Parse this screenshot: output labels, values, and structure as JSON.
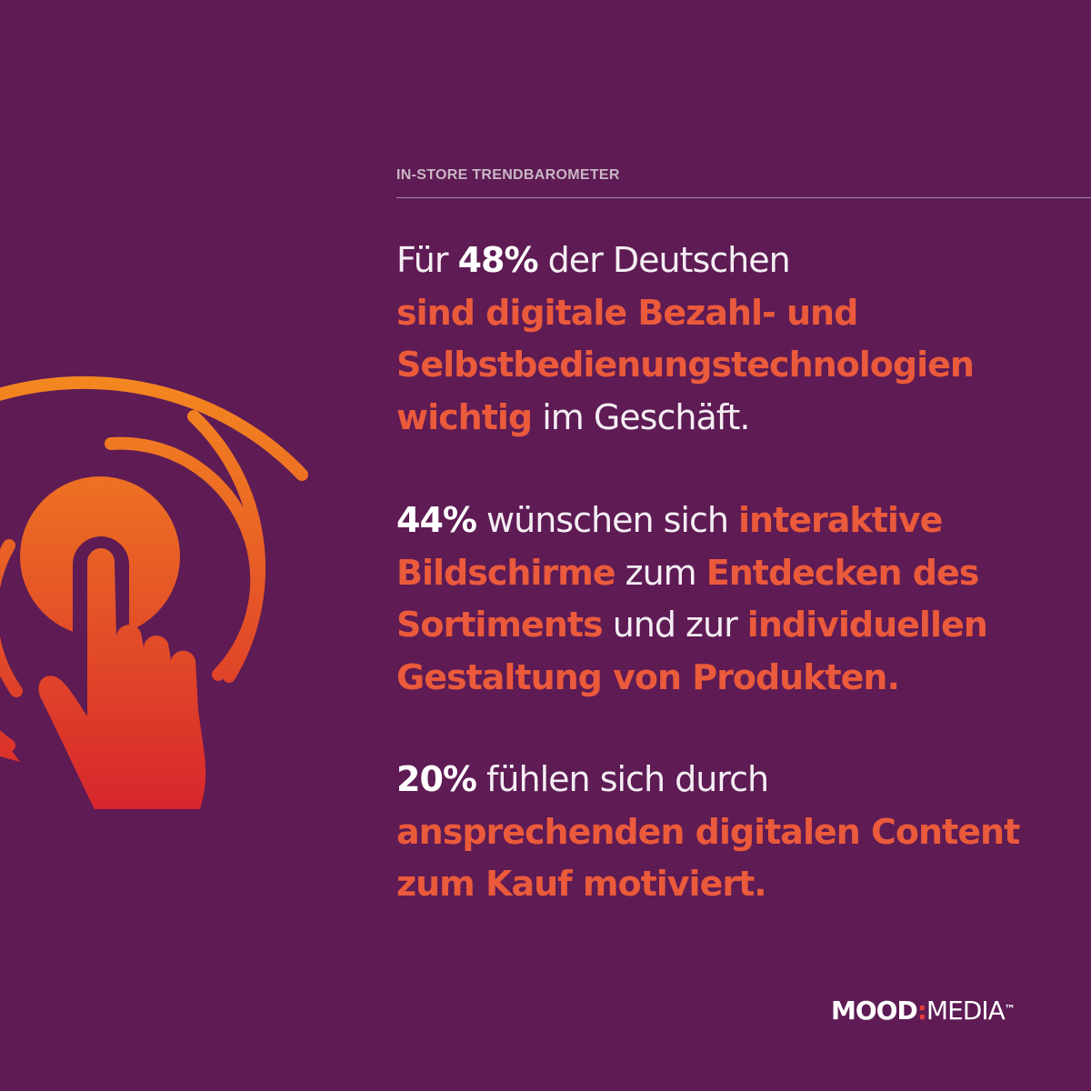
{
  "header": {
    "eyebrow": "IN-STORE TRENDBAROMETER"
  },
  "paragraphs": [
    {
      "lines": [
        [
          {
            "text": "Für ",
            "style": "plain"
          },
          {
            "text": "48%",
            "style": "w"
          },
          {
            "text": " der Deutschen",
            "style": "plain"
          }
        ],
        [
          {
            "text": "sind digitale Bezahl- und",
            "style": "o"
          }
        ],
        [
          {
            "text": "Selbstbedienungstechnologien",
            "style": "o"
          }
        ],
        [
          {
            "text": "wichtig",
            "style": "o"
          },
          {
            "text": " im Geschäft.",
            "style": "plain"
          }
        ]
      ]
    },
    {
      "lines": [
        [
          {
            "text": "44%",
            "style": "w"
          },
          {
            "text": " wünschen sich ",
            "style": "plain"
          },
          {
            "text": "interaktive",
            "style": "o"
          }
        ],
        [
          {
            "text": "Bildschirme",
            "style": "o"
          },
          {
            "text": " zum ",
            "style": "plain"
          },
          {
            "text": "Entdecken des",
            "style": "o"
          }
        ],
        [
          {
            "text": "Sortiments",
            "style": "o"
          },
          {
            "text": " und zur ",
            "style": "plain"
          },
          {
            "text": "individuellen",
            "style": "o"
          }
        ],
        [
          {
            "text": "Gestaltung von Produkten.",
            "style": "o"
          }
        ]
      ]
    },
    {
      "lines": [
        [
          {
            "text": "20%",
            "style": "w"
          },
          {
            "text": " fühlen sich durch",
            "style": "plain"
          }
        ],
        [
          {
            "text": "ansprechenden digitalen Content",
            "style": "o"
          }
        ],
        [
          {
            "text": "zum Kauf motiviert.",
            "style": "o"
          }
        ]
      ]
    }
  ],
  "brand": {
    "mood": "MOOD",
    "colon": ":",
    "media": "MEDIA",
    "tm": "™"
  },
  "icons": {
    "main": "touch-tap-icon"
  },
  "colors": {
    "background": "#5e1b54",
    "accent_orange": "#ea5a3b",
    "icon_gradient_top": "#f7931e",
    "icon_gradient_bottom": "#d7262d",
    "brand_colon": "#e23b3b"
  }
}
